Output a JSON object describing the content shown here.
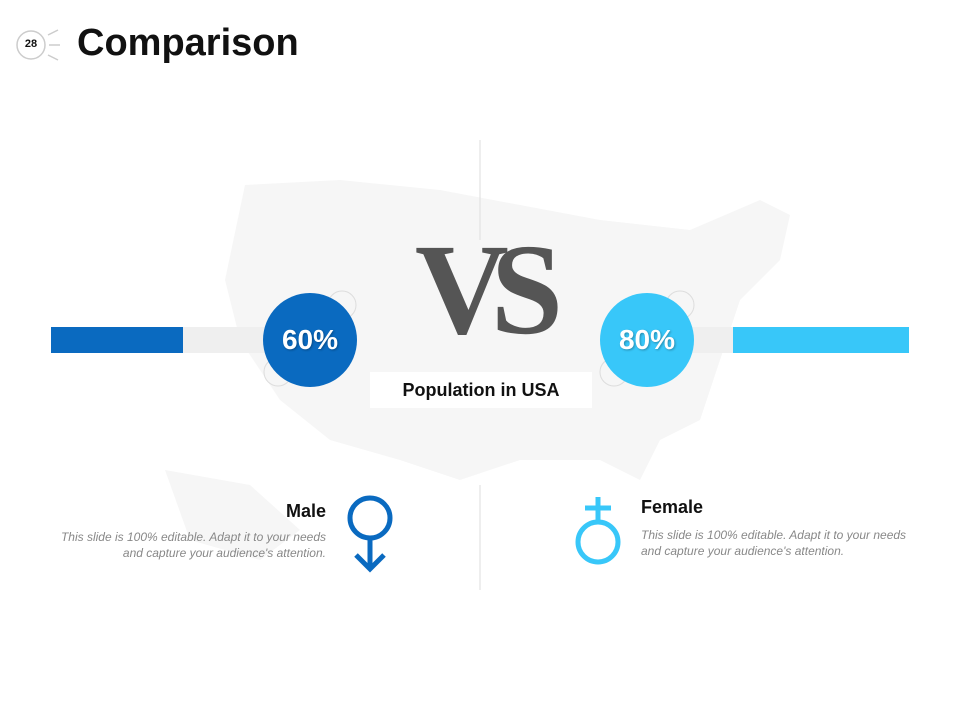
{
  "header": {
    "page_number": "28",
    "title": "Comparison"
  },
  "vs": "VS",
  "subtitle": "Population in USA",
  "items": [
    {
      "label": "Male",
      "value": 60,
      "value_label": "60%",
      "color": "#0a6ac0",
      "description": "This slide is 100% editable. Adapt it to your needs and capture your audience's attention."
    },
    {
      "label": "Female",
      "value": 80,
      "value_label": "80%",
      "color": "#38c7f9",
      "description": "This slide is 100% editable. Adapt it to your needs and capture your audience's attention."
    }
  ]
}
